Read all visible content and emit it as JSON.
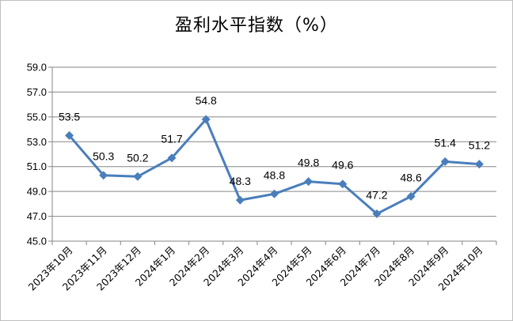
{
  "chart_data": {
    "type": "line",
    "title": "盈利水平指数（%）",
    "categories": [
      "2023年10月",
      "2023年11月",
      "2023年12月",
      "2024年1月",
      "2024年2月",
      "2024年3月",
      "2024年4月",
      "2024年5月",
      "2024年6月",
      "2024年7月",
      "2024年8月",
      "2024年9月",
      "2024年10月"
    ],
    "series": [
      {
        "values": [
          53.5,
          50.3,
          50.2,
          51.7,
          54.8,
          48.3,
          48.8,
          49.8,
          49.6,
          47.2,
          48.6,
          51.4,
          51.2
        ]
      }
    ],
    "ylim": [
      45.0,
      59.0
    ],
    "yticks": [
      "45.0",
      "47.0",
      "49.0",
      "51.0",
      "53.0",
      "55.0",
      "57.0",
      "59.0"
    ],
    "grid": "horizontal",
    "legend": "none",
    "line_color": "#4a7ebb",
    "grid_color": "#868686"
  }
}
